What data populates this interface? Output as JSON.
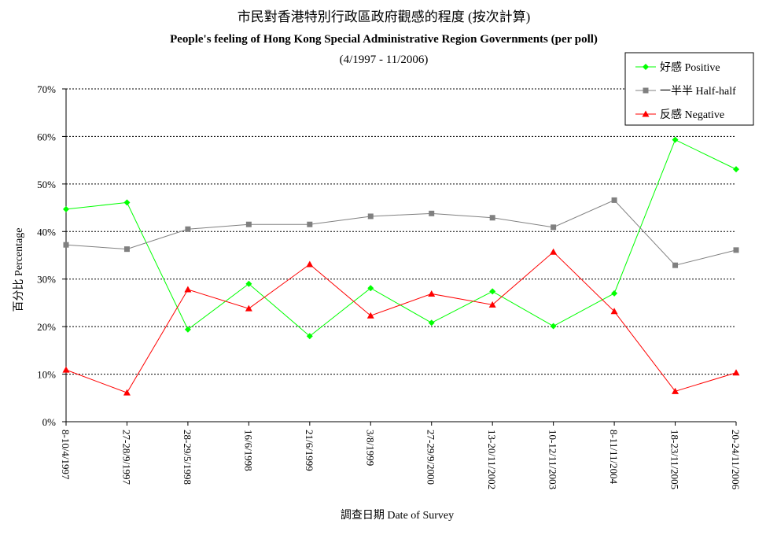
{
  "chart_data": {
    "type": "line",
    "title": "市民對香港特別行政區政府觀感的程度 (按次計算)",
    "subtitle": "People's feeling of Hong Kong Special Administrative Region Governments (per poll)",
    "period": "(4/1997 - 11/2006)",
    "xlabel": "調查日期 Date of Survey",
    "ylabel": "百分比 Percentage",
    "ylim": [
      0,
      70
    ],
    "yticks": [
      "0%",
      "10%",
      "20%",
      "30%",
      "40%",
      "50%",
      "60%",
      "70%"
    ],
    "grid": true,
    "legend_position": "top-right",
    "categories": [
      "8-10/4/1997",
      "27-28/9/1997",
      "28-29/5/1998",
      "16/6/1998",
      "21/6/1999",
      "3/8/1999",
      "27-29/9/2000",
      "13-20/11/2002",
      "10-12/11/2003",
      "8-11/11/2004",
      "18-23/11/2005",
      "20-24/11/2006"
    ],
    "series": [
      {
        "name": "好感 Positive",
        "color": "#00ff00",
        "marker": "diamond",
        "values": [
          44.7,
          46.1,
          19.4,
          29.0,
          18.0,
          28.1,
          20.8,
          27.4,
          20.1,
          27.0,
          59.3,
          53.1
        ]
      },
      {
        "name": "一半半 Half-half",
        "color": "#808080",
        "marker": "square",
        "values": [
          37.2,
          36.3,
          40.5,
          41.5,
          41.5,
          43.2,
          43.8,
          42.9,
          40.9,
          46.6,
          32.9,
          36.1
        ]
      },
      {
        "name": "反感 Negative",
        "color": "#ff0000",
        "marker": "triangle",
        "values": [
          10.9,
          6.1,
          27.8,
          23.8,
          33.1,
          22.3,
          26.9,
          24.6,
          35.7,
          23.2,
          6.4,
          10.3
        ]
      }
    ]
  }
}
